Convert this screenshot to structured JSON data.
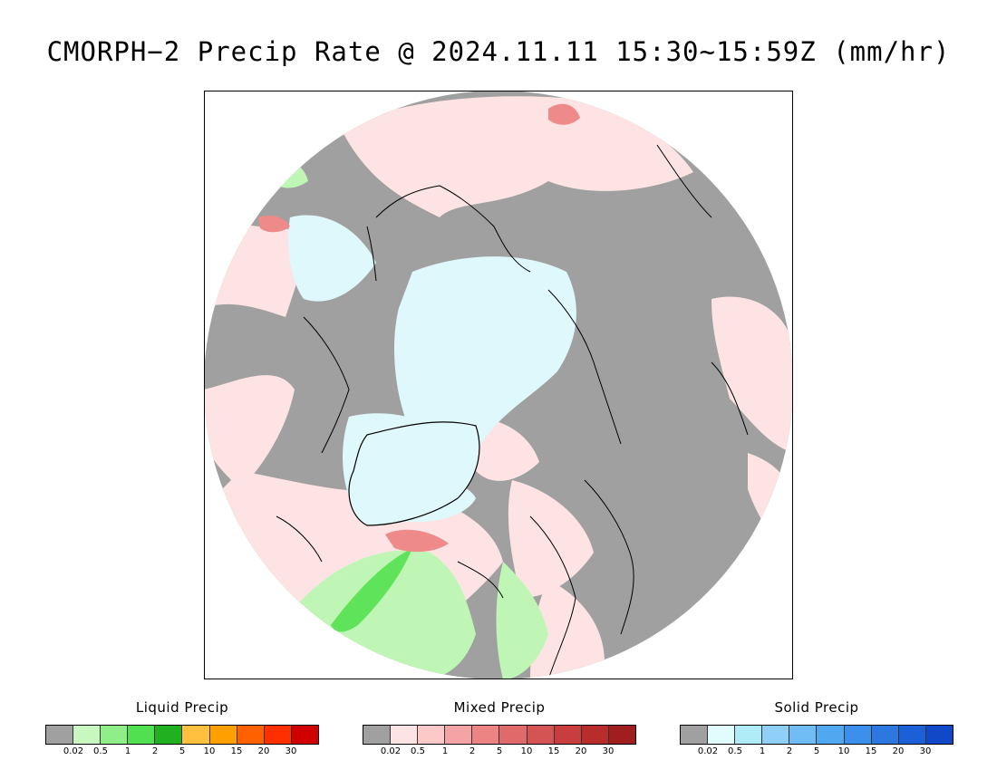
{
  "title": "CMORPH−2 Precip Rate @ 2024.11.11 15:30~15:59Z (mm/hr)",
  "colors": {
    "no_precip": "#a0a0a0",
    "land": "#9a9a9a",
    "mixed_light": "#fde3e3",
    "solid_light": "#dff8fb",
    "liquid_light": "#bff5b5",
    "liquid_mid": "#5fe35a",
    "mixed_mid": "#ee8a8a",
    "coast": "#000000"
  },
  "legends": [
    {
      "title": "Liquid Precip",
      "colors": [
        "#a0a0a0",
        "#c8f8c0",
        "#90ee88",
        "#50e050",
        "#20b020",
        "#ffc040",
        "#ffa000",
        "#ff6000",
        "#ff3000",
        "#d00000"
      ],
      "ticks": [
        "0.02",
        "0.5",
        "1",
        "2",
        "5",
        "10",
        "15",
        "20",
        "30"
      ]
    },
    {
      "title": "Mixed Precip",
      "colors": [
        "#a0a0a0",
        "#fde4e4",
        "#fcc8c8",
        "#f4a4a4",
        "#ec8484",
        "#e06a6a",
        "#d45454",
        "#c83e3e",
        "#b82c2c",
        "#a01e1e"
      ],
      "ticks": [
        "0.02",
        "0.5",
        "1",
        "2",
        "5",
        "10",
        "15",
        "20",
        "30"
      ]
    },
    {
      "title": "Solid Precip",
      "colors": [
        "#a0a0a0",
        "#e0fcfc",
        "#b0ecf8",
        "#90d0f8",
        "#70bcf4",
        "#50a8f0",
        "#3c90ec",
        "#2c78e0",
        "#1c60d8",
        "#1048c8"
      ],
      "ticks": [
        "0.02",
        "0.5",
        "1",
        "2",
        "5",
        "10",
        "15",
        "20",
        "30"
      ]
    }
  ]
}
